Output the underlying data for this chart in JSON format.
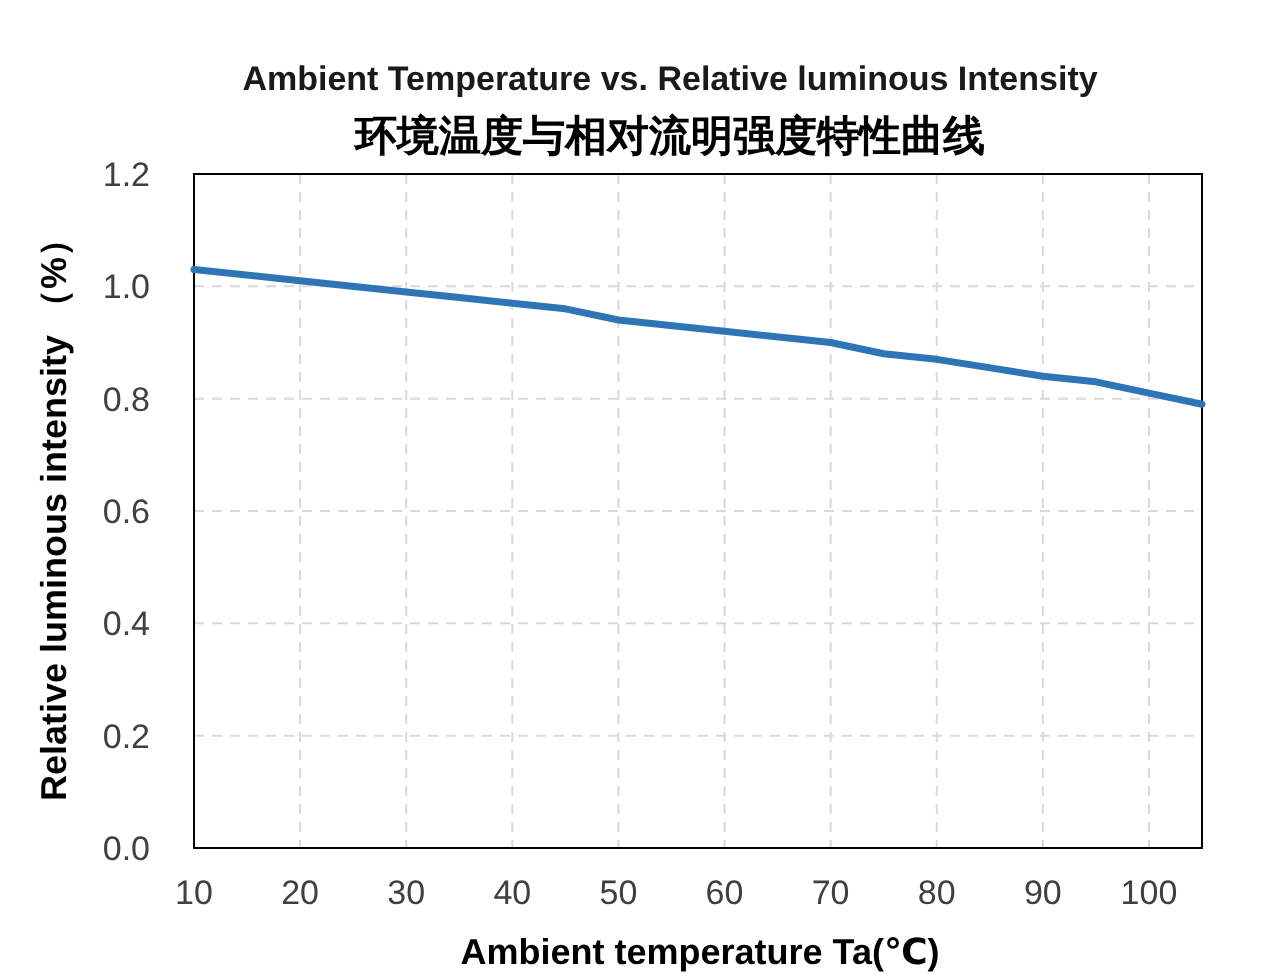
{
  "chart_data": {
    "type": "line",
    "title": "Ambient Temperature vs. Relative luminous  Intensity",
    "subtitle": "环境温度与相对流明强度特性曲线",
    "xlabel": "Ambient temperature Ta(℃)",
    "ylabel": "Relative luminous intensity （%）",
    "x": [
      10,
      20,
      30,
      35,
      40,
      45,
      50,
      60,
      70,
      75,
      80,
      90,
      95,
      100,
      105
    ],
    "series": [
      {
        "color": "#2e75b6",
        "values": [
          1.03,
          1.01,
          0.99,
          0.98,
          0.97,
          0.96,
          0.94,
          0.92,
          0.9,
          0.88,
          0.87,
          0.84,
          0.83,
          0.81,
          0.79
        ]
      }
    ],
    "xlim": [
      10,
      105
    ],
    "xticks": [
      10,
      20,
      30,
      40,
      50,
      60,
      70,
      80,
      90,
      100
    ],
    "ylim": [
      0,
      1.2
    ],
    "yticks": [
      {
        "value": 0,
        "label": "0.0"
      },
      {
        "value": 0.2,
        "label": "0.2"
      },
      {
        "value": 0.4,
        "label": "0.4"
      },
      {
        "value": 0.6,
        "label": "0.6"
      },
      {
        "value": 0.8,
        "label": "0.8"
      },
      {
        "value": 1.0,
        "label": "1.0"
      },
      {
        "value": 1.2,
        "label": "1.2"
      }
    ],
    "grid": true,
    "marker": "none",
    "line_style": "solid"
  }
}
